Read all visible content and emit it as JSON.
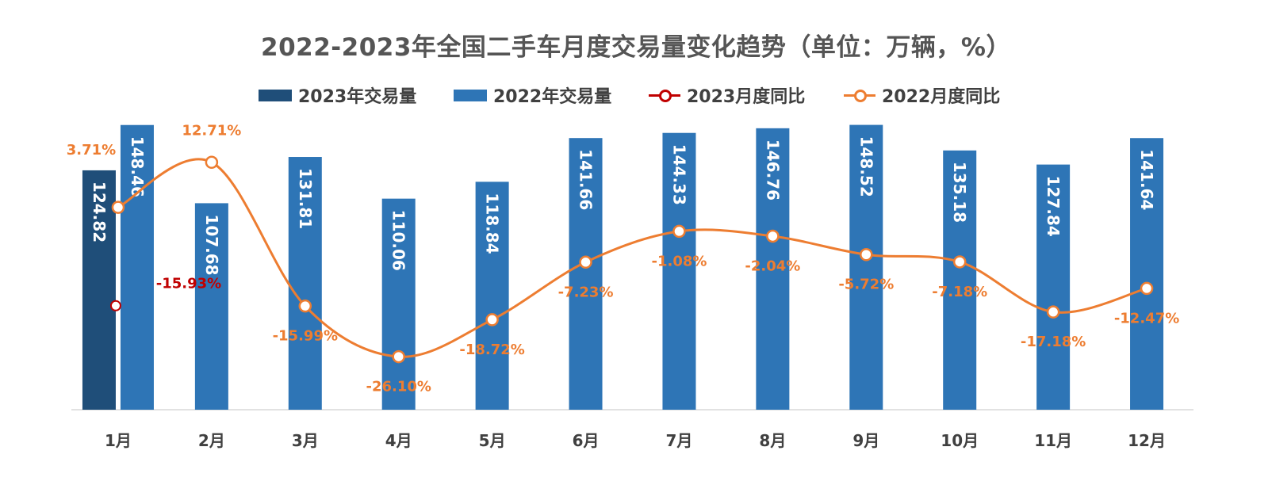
{
  "chart_data": {
    "type": "bar",
    "title": "2022-2023年全国二手车月度交易量变化趋势（单位：万辆，%）",
    "categories": [
      "1月",
      "2月",
      "3月",
      "4月",
      "5月",
      "6月",
      "7月",
      "8月",
      "9月",
      "10月",
      "11月",
      "12月"
    ],
    "series": [
      {
        "name": "2023年交易量",
        "kind": "bar",
        "color": "#1f4e79",
        "values": [
          124.82,
          null,
          null,
          null,
          null,
          null,
          null,
          null,
          null,
          null,
          null,
          null
        ]
      },
      {
        "name": "2022年交易量",
        "kind": "bar",
        "color": "#2e75b6",
        "values": [
          148.46,
          107.68,
          131.81,
          110.06,
          118.84,
          141.66,
          144.33,
          146.76,
          148.52,
          135.18,
          127.84,
          141.64
        ]
      },
      {
        "name": "2023月度同比",
        "kind": "line",
        "color": "#c00000",
        "unit": "%",
        "values": [
          -15.93,
          null,
          null,
          null,
          null,
          null,
          null,
          null,
          null,
          null,
          null,
          null
        ]
      },
      {
        "name": "2022月度同比",
        "kind": "line",
        "color": "#ed7d31",
        "unit": "%",
        "values": [
          3.71,
          12.71,
          -15.99,
          -26.1,
          -18.72,
          -7.23,
          -1.08,
          -2.04,
          -5.72,
          -7.18,
          -17.18,
          -12.47
        ]
      }
    ],
    "bar_axis_range": [
      0,
      160
    ],
    "line_axis_range": [
      -34,
      19
    ],
    "axis_labels_visible": false,
    "grid": false,
    "legend_position": "top"
  }
}
